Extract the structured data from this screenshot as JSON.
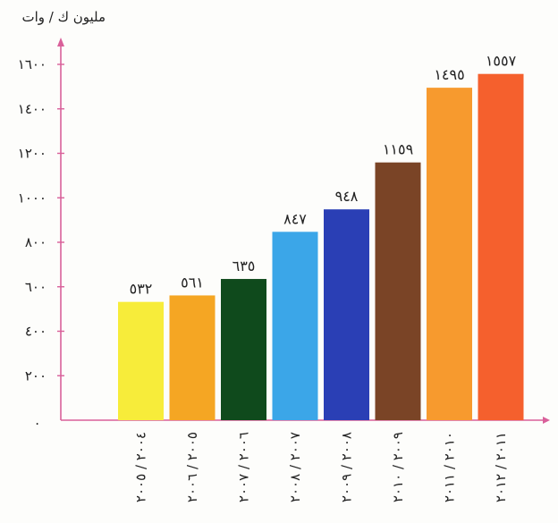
{
  "chart_data": {
    "type": "bar",
    "ylabel": "مليون ك / وات",
    "ylim": [
      0,
      1600
    ],
    "yticks": [
      {
        "value": 200,
        "label": "٢٠٠"
      },
      {
        "value": 400,
        "label": "٤٠٠"
      },
      {
        "value": 600,
        "label": "٦٠٠"
      },
      {
        "value": 800,
        "label": "٨٠٠"
      },
      {
        "value": 1000,
        "label": "١٠٠٠"
      },
      {
        "value": 1200,
        "label": "١٢٠٠"
      },
      {
        "value": 1400,
        "label": "١٤٠٠"
      },
      {
        "value": 1600,
        "label": "١٦٠٠"
      }
    ],
    "zero_label": ".",
    "categories": [
      "٢٠٠٤ / ٢٠٠٥",
      "٢٠٠٥ / ٢٠٠٦",
      "٢٠٠٦ / ٢٠٠٧",
      "٢٠٠٧ / ٢٠٠٨",
      "٢٠٠٨ / ٢٠٠٩",
      "٢٠٠٩ / ٢٠١٠",
      "٢٠١٠ / ٢٠١١",
      "٢٠١١ / ٢٠١٢"
    ],
    "values": [
      532,
      561,
      635,
      847,
      948,
      1159,
      1495,
      1557
    ],
    "value_labels": [
      "٥٣٢",
      "٥٦١",
      "٦٣٥",
      "٨٤٧",
      "٩٤٨",
      "١١٥٩",
      "١٤٩٥",
      "١٥٥٧"
    ],
    "colors": [
      "#f7ec3a",
      "#f5a623",
      "#0f4a1c",
      "#3ba6e8",
      "#2a3fb5",
      "#7a4426",
      "#f79a2e",
      "#f5602d"
    ],
    "axis_color": "#d9609a",
    "grid": false,
    "legend": "none"
  }
}
